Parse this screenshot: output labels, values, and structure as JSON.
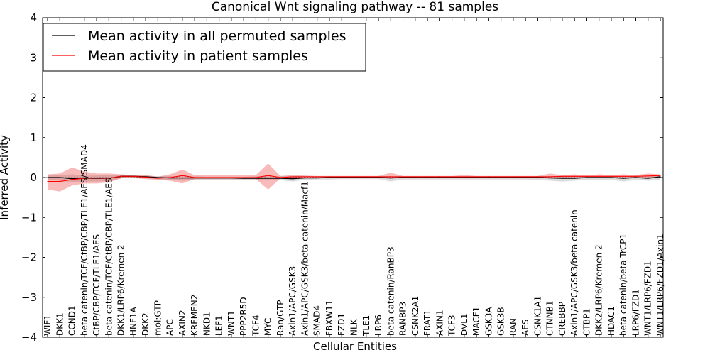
{
  "chart_data": {
    "type": "line",
    "title": "Canonical Wnt signaling pathway -- 81 samples",
    "xlabel": "Cellular Entities",
    "ylabel": "Inferred Activity",
    "ylim": [
      -4,
      4
    ],
    "yticks": [
      -4,
      -3,
      -2,
      -1,
      0,
      1,
      2,
      3,
      4
    ],
    "ytick_labels": [
      "−4",
      "−3",
      "−2",
      "−1",
      "0",
      "1",
      "2",
      "3",
      "4"
    ],
    "legend_position": "top-left",
    "categories": [
      "WIF1",
      "DKK1",
      "CCND1",
      "beta catenin/TCF/CtBP/CBP/TLE1/AES/SMAD4",
      "CtBP/CBP/TCF/TLE1/AES",
      "beta catenin/TCF/CtBP/CBP/TLE1/AES",
      "DKK1/LRP6/Kremen 2",
      "HNF1A",
      "DKK2",
      "mol:GTP",
      "APC",
      "AXIN2",
      "KREMEN2",
      "NKD1",
      "LEF1",
      "WNT1",
      "PPP2R5D",
      "TCF4",
      "MYC",
      "Ran/GTP",
      "Axin1/APC/GSK3",
      "Axin1/APC/GSK3/beta catenin/Macf1",
      "SMAD4",
      "FBXW11",
      "FZD1",
      "NLK",
      "TLE1",
      "LRP6",
      "beta catenin/RanBP3",
      "RANBP3",
      "CSNK2A1",
      "FRAT1",
      "AXIN1",
      "TCF3",
      "DVL1",
      "MACF1",
      "GSK3A",
      "GSK3B",
      "RAN",
      "AES",
      "CSNK1A1",
      "CTNNB1",
      "CREBBP",
      "Axin1/APC/GSK3/beta catenin",
      "CTBP1",
      "DKK2/LRP6/Kremen 2",
      "HDAC1",
      "beta catenin/beta TrCP1",
      "LRP6/FZD1",
      "WNT1/LRP6/FZD1",
      "WNT1/LRP6/FZD1/Axin1"
    ],
    "series": [
      {
        "name": "Mean activity in all permuted samples",
        "color": "#000000",
        "values": [
          0.0,
          0.0,
          -0.03,
          -0.02,
          -0.02,
          -0.02,
          0.03,
          0.03,
          0.02,
          0.0,
          -0.01,
          -0.01,
          -0.01,
          -0.01,
          -0.01,
          -0.01,
          -0.02,
          -0.02,
          -0.02,
          -0.02,
          -0.03,
          -0.01,
          -0.01,
          0.0,
          0.0,
          0.0,
          0.0,
          0.0,
          -0.01,
          0.0,
          0.0,
          0.0,
          0.0,
          0.0,
          0.0,
          0.0,
          0.0,
          0.0,
          0.0,
          0.0,
          0.0,
          -0.01,
          -0.02,
          -0.02,
          0.0,
          0.0,
          0.0,
          -0.02,
          0.0,
          -0.02,
          0.02
        ],
        "band_upper": [
          0.06,
          0.06,
          0.08,
          0.05,
          0.05,
          0.07,
          0.07,
          0.05,
          0.05,
          0.03,
          0.04,
          0.03,
          0.03,
          0.02,
          0.02,
          0.02,
          0.02,
          0.03,
          0.03,
          0.03,
          0.04,
          0.04,
          0.03,
          0.03,
          0.03,
          0.03,
          0.03,
          0.03,
          0.03,
          0.03,
          0.03,
          0.03,
          0.03,
          0.03,
          0.03,
          0.03,
          0.03,
          0.03,
          0.03,
          0.03,
          0.03,
          0.03,
          0.04,
          0.04,
          0.03,
          0.03,
          0.03,
          0.03,
          0.03,
          0.03,
          0.05
        ],
        "band_lower": [
          -0.06,
          -0.08,
          -0.12,
          -0.1,
          -0.1,
          -0.09,
          -0.02,
          -0.01,
          -0.02,
          -0.04,
          -0.06,
          -0.08,
          -0.06,
          -0.06,
          -0.06,
          -0.06,
          -0.06,
          -0.07,
          -0.07,
          -0.07,
          -0.1,
          -0.06,
          -0.05,
          -0.05,
          -0.04,
          -0.04,
          -0.04,
          -0.04,
          -0.1,
          -0.05,
          -0.05,
          -0.05,
          -0.05,
          -0.05,
          -0.05,
          -0.05,
          -0.05,
          -0.05,
          -0.05,
          -0.05,
          -0.06,
          -0.08,
          -0.1,
          -0.08,
          -0.06,
          -0.06,
          -0.06,
          -0.1,
          -0.06,
          -0.08,
          -0.06
        ]
      },
      {
        "name": "Mean activity in patient samples",
        "color": "#ff0000",
        "values": [
          -0.1,
          -0.1,
          -0.05,
          -0.02,
          -0.01,
          -0.02,
          0.03,
          0.03,
          0.01,
          -0.02,
          0.0,
          0.05,
          0.0,
          0.0,
          0.0,
          0.0,
          0.0,
          0.0,
          0.05,
          0.0,
          0.02,
          0.02,
          0.02,
          0.02,
          0.02,
          0.02,
          0.02,
          0.02,
          0.02,
          0.02,
          0.02,
          0.02,
          0.02,
          0.02,
          0.02,
          0.02,
          0.02,
          0.02,
          0.02,
          0.02,
          0.02,
          0.02,
          0.03,
          0.03,
          0.03,
          0.03,
          0.03,
          0.03,
          0.03,
          0.04,
          0.05
        ],
        "band_upper": [
          0.08,
          0.1,
          0.25,
          0.15,
          0.1,
          0.1,
          0.08,
          0.06,
          0.06,
          0.02,
          0.08,
          0.2,
          0.06,
          0.06,
          0.06,
          0.06,
          0.06,
          0.06,
          0.35,
          0.04,
          0.06,
          0.05,
          0.04,
          0.04,
          0.04,
          0.04,
          0.04,
          0.04,
          0.12,
          0.04,
          0.04,
          0.04,
          0.04,
          0.04,
          0.06,
          0.04,
          0.04,
          0.04,
          0.04,
          0.04,
          0.04,
          0.1,
          0.06,
          0.08,
          0.05,
          0.08,
          0.06,
          0.08,
          0.06,
          0.1,
          0.08
        ],
        "band_lower": [
          -0.3,
          -0.35,
          -0.2,
          -0.15,
          -0.15,
          -0.12,
          -0.02,
          -0.01,
          -0.04,
          -0.06,
          -0.08,
          -0.15,
          -0.04,
          -0.04,
          -0.04,
          -0.04,
          -0.04,
          -0.04,
          -0.3,
          -0.02,
          0.0,
          0.0,
          0.0,
          0.0,
          0.0,
          0.0,
          0.0,
          0.0,
          -0.03,
          0.0,
          0.0,
          0.0,
          0.0,
          0.0,
          -0.01,
          0.0,
          0.0,
          0.0,
          0.0,
          0.0,
          0.0,
          -0.02,
          0.0,
          -0.01,
          0.0,
          -0.01,
          0.0,
          -0.02,
          0.0,
          -0.02,
          0.0
        ]
      }
    ]
  }
}
